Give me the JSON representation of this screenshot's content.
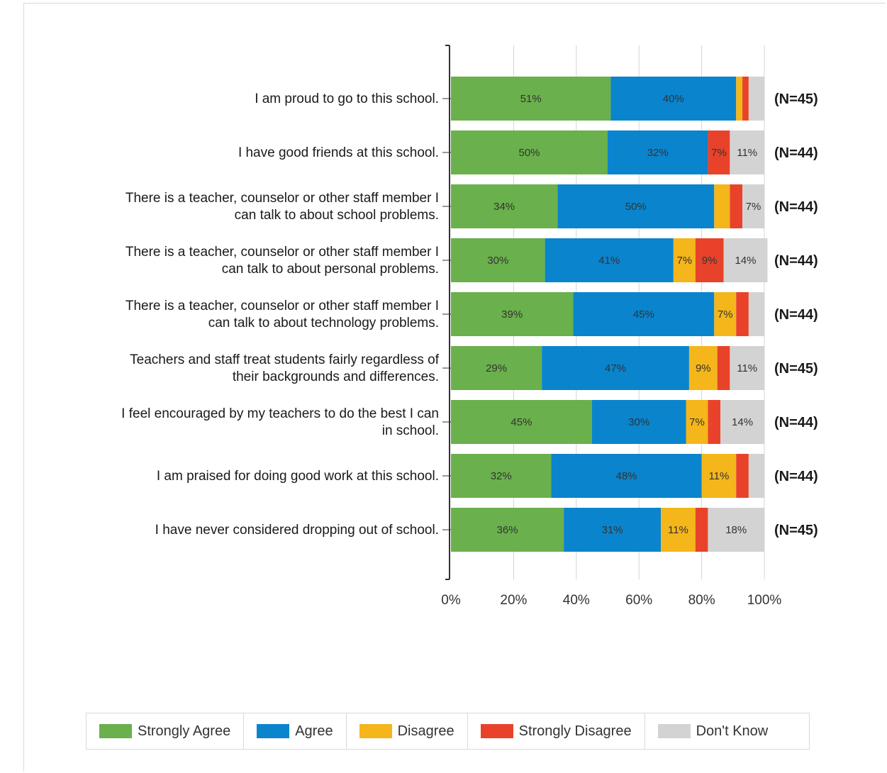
{
  "chart_data": {
    "type": "bar",
    "orientation": "horizontal",
    "stacked": true,
    "categories": [
      [
        "I am proud to go to this school."
      ],
      [
        "I have good friends at this school."
      ],
      [
        "There is a teacher, counselor or other staff member I",
        "can talk to about school problems."
      ],
      [
        "There is a teacher, counselor or other staff member I",
        "can talk to about personal problems."
      ],
      [
        "There is a teacher, counselor or other staff member I",
        "can talk to about technology problems."
      ],
      [
        "Teachers and staff treat students fairly regardless of",
        "their backgrounds and differences."
      ],
      [
        "I feel encouraged by my teachers to do the best I can",
        "in school."
      ],
      [
        "I am praised for doing good work at this school."
      ],
      [
        "I have never considered dropping out of school."
      ]
    ],
    "n_labels": [
      "(N=45)",
      "(N=44)",
      "(N=44)",
      "(N=44)",
      "(N=44)",
      "(N=45)",
      "(N=44)",
      "(N=44)",
      "(N=45)"
    ],
    "series": [
      {
        "name": "Strongly Agree",
        "color": "#6ab04c",
        "values": [
          51,
          50,
          34,
          30,
          39,
          29,
          45,
          32,
          36
        ]
      },
      {
        "name": "Agree",
        "color": "#0a84cc",
        "values": [
          40,
          32,
          50,
          41,
          45,
          47,
          30,
          48,
          31
        ]
      },
      {
        "name": "Disagree",
        "color": "#f4b61a",
        "values": [
          2,
          0,
          5,
          7,
          7,
          9,
          7,
          11,
          11
        ]
      },
      {
        "name": "Strongly Disagree",
        "color": "#e8432a",
        "values": [
          2,
          7,
          4,
          9,
          4,
          4,
          4,
          4,
          4
        ]
      },
      {
        "name": "Don't Know",
        "color": "#d3d3d3",
        "values": [
          5,
          11,
          7,
          14,
          5,
          11,
          14,
          5,
          18
        ]
      }
    ],
    "data_labels": [
      [
        "51%",
        "40%",
        "",
        "",
        ""
      ],
      [
        "50%",
        "32%",
        "",
        "7%",
        "11%"
      ],
      [
        "34%",
        "50%",
        "",
        "",
        "7%"
      ],
      [
        "30%",
        "41%",
        "7%",
        "9%",
        "14%"
      ],
      [
        "39%",
        "45%",
        "7%",
        "",
        ""
      ],
      [
        "29%",
        "47%",
        "9%",
        "",
        "11%"
      ],
      [
        "45%",
        "30%",
        "7%",
        "",
        "14%"
      ],
      [
        "32%",
        "48%",
        "11%",
        "",
        ""
      ],
      [
        "36%",
        "31%",
        "11%",
        "",
        "18%"
      ]
    ],
    "x_ticks": [
      "0%",
      "20%",
      "40%",
      "60%",
      "80%",
      "100%"
    ],
    "xlim": [
      0,
      100
    ],
    "grid": true,
    "legend_position": "bottom"
  }
}
